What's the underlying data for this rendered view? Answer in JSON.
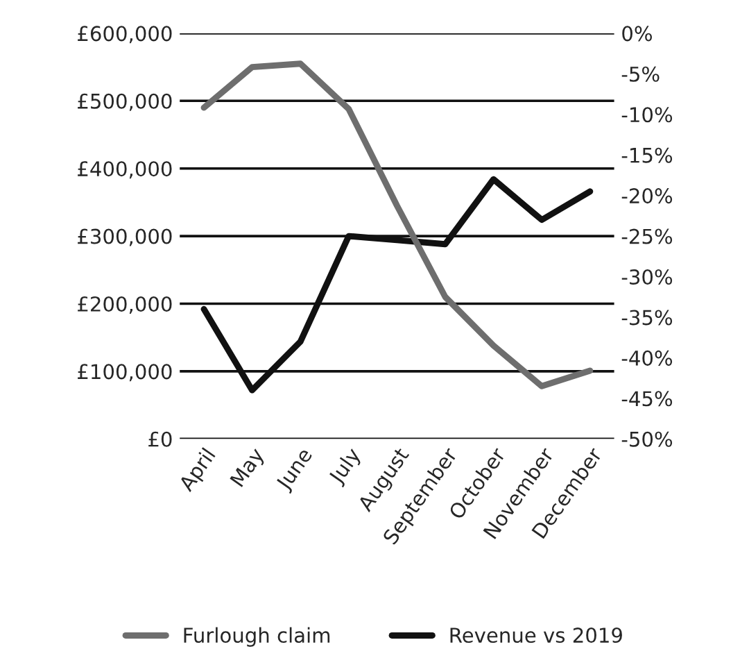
{
  "chart_data": {
    "type": "line",
    "categories": [
      "April",
      "May",
      "June",
      "July",
      "August",
      "September",
      "October",
      "November",
      "December"
    ],
    "series": [
      {
        "name": "Furlough claim",
        "color": "#6e6e6e",
        "values": [
          490000,
          550000,
          555000,
          488000,
          345000,
          210000,
          138000,
          78000,
          101000
        ]
      },
      {
        "name": "Revenue vs 2019",
        "color": "#111111",
        "axis": "y2",
        "values": [
          -34,
          -44,
          -38,
          -25,
          -25.5,
          -26,
          -18,
          -23,
          -19.5
        ]
      }
    ],
    "ylim": [
      0,
      600000
    ],
    "yticks": [
      {
        "value": 0,
        "label": "£0"
      },
      {
        "value": 100000,
        "label": "£100,000"
      },
      {
        "value": 200000,
        "label": "£200,000"
      },
      {
        "value": 300000,
        "label": "£300,000"
      },
      {
        "value": 400000,
        "label": "£400,000"
      },
      {
        "value": 500000,
        "label": "£500,000"
      },
      {
        "value": 600000,
        "label": "£600,000"
      }
    ],
    "y2lim": [
      -50,
      0
    ],
    "y2ticks": [
      {
        "value": -50,
        "label": "-50%"
      },
      {
        "value": -45,
        "label": "-45%"
      },
      {
        "value": -40,
        "label": "-40%"
      },
      {
        "value": -35,
        "label": "-35%"
      },
      {
        "value": -30,
        "label": "-30%"
      },
      {
        "value": -25,
        "label": "-25%"
      },
      {
        "value": -20,
        "label": "-20%"
      },
      {
        "value": -15,
        "label": "-15%"
      },
      {
        "value": -10,
        "label": "-10%"
      },
      {
        "value": -5,
        "label": "-5%"
      },
      {
        "value": 0,
        "label": "0%"
      }
    ],
    "grid": "y",
    "legend": "bottom",
    "line_style": "solid",
    "marker": "none"
  }
}
